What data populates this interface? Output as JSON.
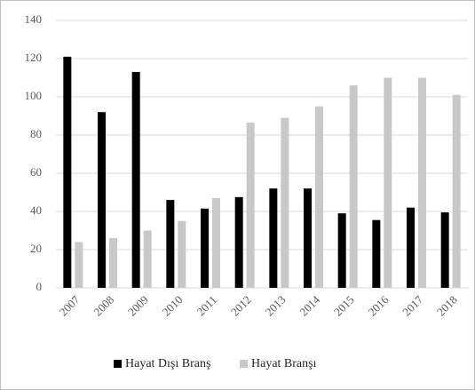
{
  "chart_data": {
    "type": "bar",
    "categories": [
      "2007",
      "2008",
      "2009",
      "2010",
      "2011",
      "2012",
      "2013",
      "2014",
      "2015",
      "2016",
      "2017",
      "2018"
    ],
    "series": [
      {
        "name": "Hayat Dışı Branş",
        "color": "#000000",
        "values": [
          121,
          92,
          113,
          46,
          41.5,
          47.5,
          52,
          52,
          39,
          35.5,
          42,
          39.5
        ]
      },
      {
        "name": "Hayat Branşı",
        "color": "#c8c8c8",
        "values": [
          24,
          26,
          30,
          35,
          47,
          86.5,
          89,
          95,
          106,
          110,
          110,
          101
        ]
      }
    ],
    "ylim": [
      0,
      140
    ],
    "yticks": [
      0,
      20,
      40,
      60,
      80,
      100,
      120,
      140
    ],
    "grid": true,
    "legend": "bottom"
  }
}
